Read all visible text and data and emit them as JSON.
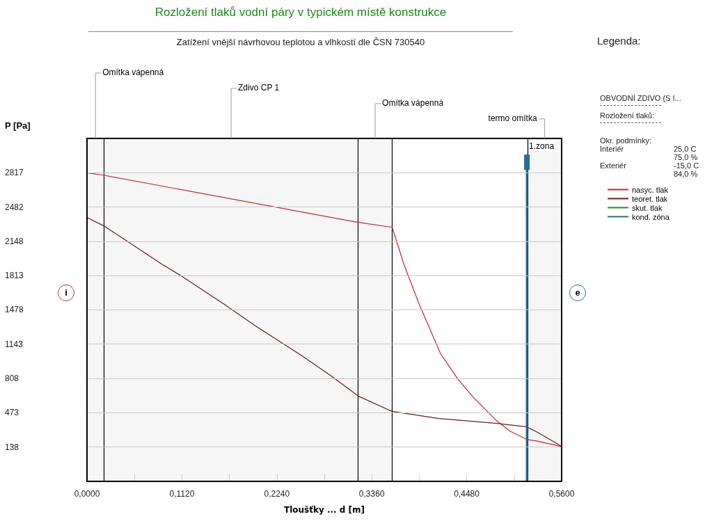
{
  "chart_data": {
    "type": "line",
    "title": "Rozložení tlaků vodní páry v typickém místě konstrukce",
    "subtitle": "Zatížení vnější návrhovou teplotou a vlhkostí dle ČSN 730540",
    "xlabel": "Tloušťky ... d [m]",
    "ylabel": "P [Pa]",
    "legend_title": "Legenda:",
    "legend": "right",
    "xlim": [
      0,
      0.56
    ],
    "xticks": [
      {
        "value": 0,
        "label": "0,0000"
      },
      {
        "value": 0.056,
        "label": null
      },
      {
        "value": 0.112,
        "label": "0,1120"
      },
      {
        "value": 0.168,
        "label": null
      },
      {
        "value": 0.224,
        "label": "0,2240"
      },
      {
        "value": 0.28,
        "label": null
      },
      {
        "value": 0.336,
        "label": "0,3360"
      },
      {
        "value": 0.392,
        "label": null
      },
      {
        "value": 0.448,
        "label": "0,4480"
      },
      {
        "value": 0.504,
        "label": null
      },
      {
        "value": 0.56,
        "label": "0,5600"
      }
    ],
    "ylim": [
      -197,
      3152
    ],
    "yticks": [
      138,
      473,
      808,
      1143,
      1478,
      1813,
      2148,
      2482,
      2817
    ],
    "grid": "y",
    "series": [
      {
        "name": "nasyc. tlak",
        "color": "#c0282d",
        "x": [
          0,
          0.02,
          0.32,
          0.36,
          0.374,
          0.392,
          0.417,
          0.437,
          0.456,
          0.483,
          0.499,
          0.519,
          0.53,
          0.56
        ],
        "values": [
          2817,
          2792,
          2332,
          2284,
          1921,
          1532,
          1053,
          807,
          622,
          397,
          294,
          212,
          198,
          144
        ]
      },
      {
        "name": "teoret. tlak",
        "color": "#6b1a1a",
        "x": [
          0,
          0.02,
          0.089,
          0.112,
          0.162,
          0.199,
          0.253,
          0.289,
          0.32,
          0.36,
          0.415,
          0.483,
          0.519,
          0.532,
          0.56
        ],
        "values": [
          2379,
          2297,
          1921,
          1805,
          1532,
          1320,
          1033,
          827,
          636,
          486,
          417,
          369,
          335,
          280,
          144
        ]
      },
      {
        "name": "skut. tlak",
        "color": "#2a8a2a"
      },
      {
        "name": "kond. zóna",
        "color": "#2b6b96",
        "x": [
          0.519,
          0.519
        ],
        "values": [
          -197,
          2920
        ]
      }
    ],
    "bands": [
      {
        "axis": "x",
        "from": 0,
        "to": 0.02,
        "label": "Omítka vápenná",
        "color": "#f6f6f6"
      },
      {
        "axis": "x",
        "from": 0.02,
        "to": 0.32,
        "label": "Zdivo CP 1",
        "color": "#f6f6f6"
      },
      {
        "axis": "x",
        "from": 0.32,
        "to": 0.36,
        "label": "Omítka vápenná",
        "color": "#f6f6f6"
      },
      {
        "axis": "x",
        "from": 0.52,
        "to": 0.56,
        "label": "termo omítka",
        "color": "#f6f6f6"
      }
    ],
    "annotations": [
      {
        "text": "1.zona",
        "x": 0.519,
        "y": 2920
      },
      "i",
      "e",
      "OBVODNÍ ZDIVO (S I...",
      "Rozložení tlaků:",
      "Okr. podmínky:",
      "Interiér",
      "25,0 C",
      "75,0 %",
      "Exteriér",
      "-15,0 C",
      "84,0 %"
    ]
  }
}
